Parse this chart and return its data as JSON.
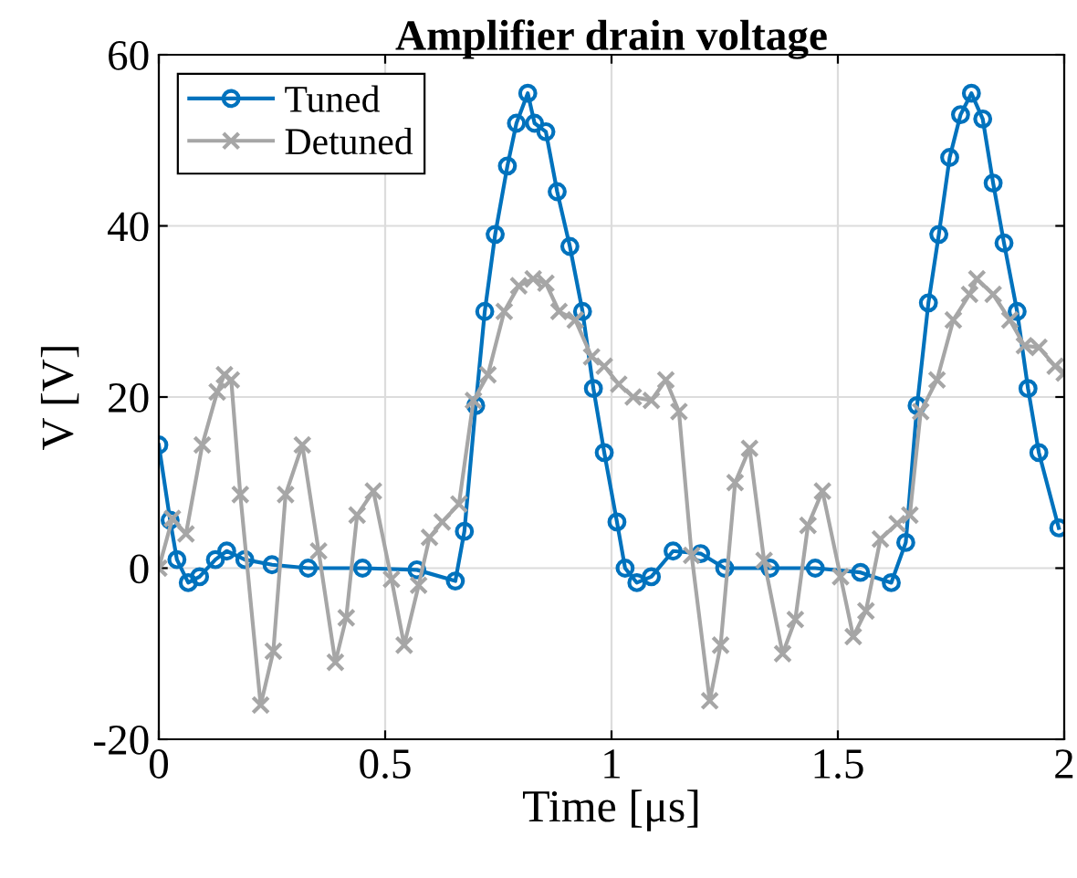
{
  "chart_data": {
    "type": "line",
    "title": "Amplifier drain voltage",
    "xlabel": "Time [μs]",
    "ylabel": "V [V]",
    "xlim": [
      0,
      2
    ],
    "ylim": [
      -20,
      60
    ],
    "xticks": [
      0,
      0.5,
      1,
      1.5,
      2
    ],
    "yticks": [
      -20,
      0,
      20,
      40,
      60
    ],
    "grid": true,
    "legend": "top left",
    "line_style": "solid",
    "series": [
      {
        "name": "Tuned",
        "color": "#0072bd",
        "marker": "circle",
        "x": [
          0,
          0.025,
          0.04,
          0.065,
          0.09,
          0.125,
          0.15,
          0.19,
          0.25,
          0.33,
          0.45,
          0.57,
          0.655,
          0.675,
          0.7,
          0.72,
          0.743,
          0.77,
          0.79,
          0.815,
          0.83,
          0.855,
          0.88,
          0.908,
          0.936,
          0.96,
          0.984,
          1.012,
          1.03,
          1.056,
          1.088,
          1.136,
          1.197,
          1.25,
          1.35,
          1.45,
          1.55,
          1.618,
          1.65,
          1.675,
          1.7,
          1.723,
          1.747,
          1.771,
          1.795,
          1.82,
          1.843,
          1.867,
          1.896,
          1.92,
          1.944,
          1.988
        ],
        "values": [
          14.4,
          5.6,
          1,
          -1.7,
          -1,
          1,
          2,
          1,
          0.4,
          0,
          0,
          -0.2,
          -1.5,
          4.3,
          19,
          30,
          39,
          47,
          52,
          55.5,
          52,
          51,
          44,
          37.6,
          30,
          21,
          13.5,
          5.4,
          0,
          -1.7,
          -1,
          2,
          1.7,
          0,
          0,
          0,
          -0.5,
          -1.7,
          3,
          19,
          31,
          39,
          48,
          53,
          55.5,
          52.5,
          45,
          38,
          30,
          21,
          13.5,
          4.7
        ]
      },
      {
        "name": "Detuned",
        "color": "#a6a6a6",
        "marker": "cross",
        "x": [
          0,
          0.03,
          0.06,
          0.096,
          0.129,
          0.145,
          0.16,
          0.18,
          0.225,
          0.253,
          0.28,
          0.317,
          0.353,
          0.39,
          0.414,
          0.438,
          0.474,
          0.514,
          0.542,
          0.574,
          0.598,
          0.626,
          0.663,
          0.695,
          0.727,
          0.763,
          0.795,
          0.827,
          0.855,
          0.884,
          0.92,
          0.956,
          0.984,
          1.016,
          1.048,
          1.088,
          1.12,
          1.149,
          1.177,
          1.217,
          1.241,
          1.273,
          1.305,
          1.337,
          1.378,
          1.406,
          1.434,
          1.466,
          1.506,
          1.534,
          1.562,
          1.594,
          1.631,
          1.659,
          1.683,
          1.719,
          1.755,
          1.791,
          1.807,
          1.843,
          1.88,
          1.912,
          1.944,
          1.98,
          2.0
        ],
        "values": [
          0,
          5.8,
          4,
          14.4,
          20.6,
          22.6,
          22,
          8.6,
          -16,
          -9.7,
          8.6,
          14.4,
          2,
          -11,
          -5.8,
          6.2,
          9,
          -1.3,
          -9,
          -2,
          3.6,
          5.4,
          7.5,
          19.6,
          22.6,
          30,
          33,
          33.8,
          33.3,
          30,
          29,
          24.7,
          23.6,
          21.5,
          20,
          19.6,
          22,
          18.3,
          1.5,
          -15.5,
          -9,
          10,
          14,
          0.9,
          -10,
          -6,
          5,
          9,
          -1,
          -8,
          -5,
          3.4,
          5.2,
          6.2,
          18.3,
          22,
          29,
          32,
          33.8,
          32,
          29,
          26,
          25.8,
          23.6,
          22.8
        ]
      }
    ]
  }
}
